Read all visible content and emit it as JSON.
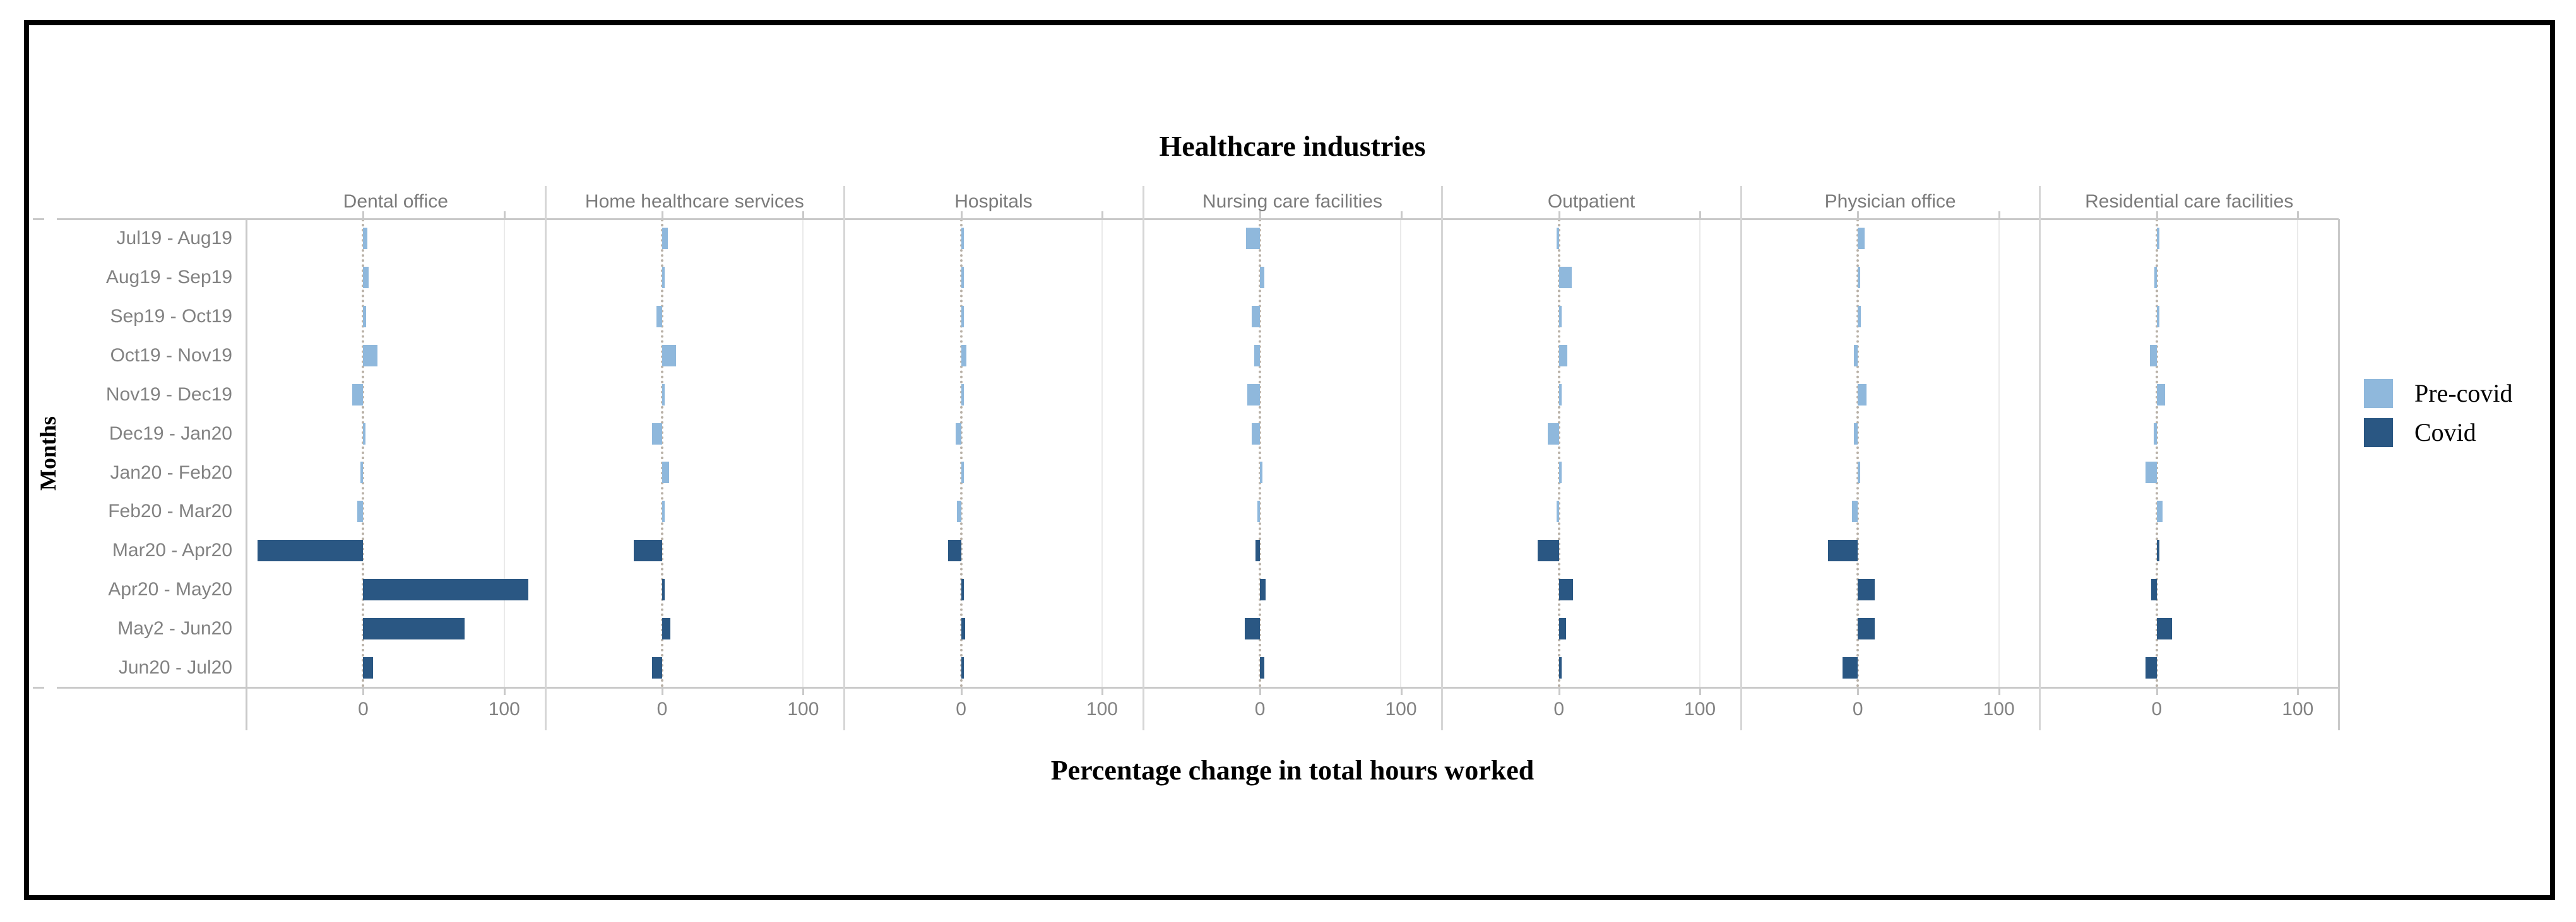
{
  "title": "Healthcare industries",
  "x_axis_title": "Percentage change in total hours worked",
  "y_axis_title": "Months",
  "x_ticks": [
    "0",
    "100"
  ],
  "colors": {
    "pre_covid": "#8FB8DC",
    "covid": "#2A5783",
    "axis_line": "#C9C9C9",
    "separator": "#D6D6D6",
    "gridline": "#EAEAEA",
    "zero_line": "#B9B1A7",
    "label_gray": "#828282",
    "facet_label_gray": "#7B7B7B",
    "frame": "#000000"
  },
  "legend": {
    "position": "right",
    "items": [
      {
        "label": "Pre-covid",
        "color_key": "pre_covid"
      },
      {
        "label": "Covid",
        "color_key": "covid"
      }
    ]
  },
  "chart_data": {
    "type": "bar",
    "orientation": "horizontal",
    "title": "Healthcare industries",
    "xlabel": "Percentage change in total hours worked",
    "ylabel": "Months",
    "xlim": [
      -83,
      129
    ],
    "x_tick_values": [
      0,
      100
    ],
    "grid": "light vertical line at 100 only; dotted vertical zero line per panel",
    "legend_position": "right",
    "categories": [
      "Jul19 - Aug19",
      "Aug19 - Sep19",
      "Sep19 - Oct19",
      "Oct19 - Nov19",
      "Nov19 - Dec19",
      "Dec19 - Jan20",
      "Jan20 - Feb20",
      "Feb20 - Mar20",
      "Mar20 - Apr20",
      "Apr20 - May20",
      "May2 - Jun20",
      "Jun20 - Jul20"
    ],
    "covid_start_index": 8,
    "series": [
      {
        "name": "Pre-covid",
        "row_indices": [
          0,
          1,
          2,
          3,
          4,
          5,
          6,
          7
        ]
      },
      {
        "name": "Covid",
        "row_indices": [
          8,
          9,
          10,
          11
        ]
      }
    ],
    "panels": [
      {
        "label": "Dental office",
        "values": [
          3,
          4,
          2,
          10,
          -8,
          1,
          -2,
          -4,
          -75,
          117,
          72,
          7
        ]
      },
      {
        "label": "Home healthcare services",
        "values": [
          4,
          1,
          -4,
          10,
          1,
          -7,
          5,
          1,
          -20,
          2,
          6,
          -7
        ]
      },
      {
        "label": "Hospitals",
        "values": [
          1,
          1,
          1,
          4,
          1,
          -4,
          2,
          -3,
          -9,
          1,
          3,
          1
        ]
      },
      {
        "label": "Nursing care facilities",
        "values": [
          -10,
          3,
          -6,
          -4,
          -9,
          -6,
          1,
          -2,
          -3,
          4,
          -11,
          3
        ]
      },
      {
        "label": "Outpatient",
        "values": [
          -1,
          9,
          1,
          6,
          1,
          -8,
          1,
          -1,
          -15,
          10,
          5,
          2
        ]
      },
      {
        "label": "Physician office",
        "values": [
          5,
          1,
          2,
          -3,
          6,
          -3,
          1,
          -4,
          -21,
          12,
          12,
          -11
        ]
      },
      {
        "label": "Residential care facilities",
        "values": [
          2,
          -1,
          1,
          -5,
          6,
          -2,
          -8,
          4,
          1,
          -4,
          11,
          -8
        ]
      }
    ]
  }
}
